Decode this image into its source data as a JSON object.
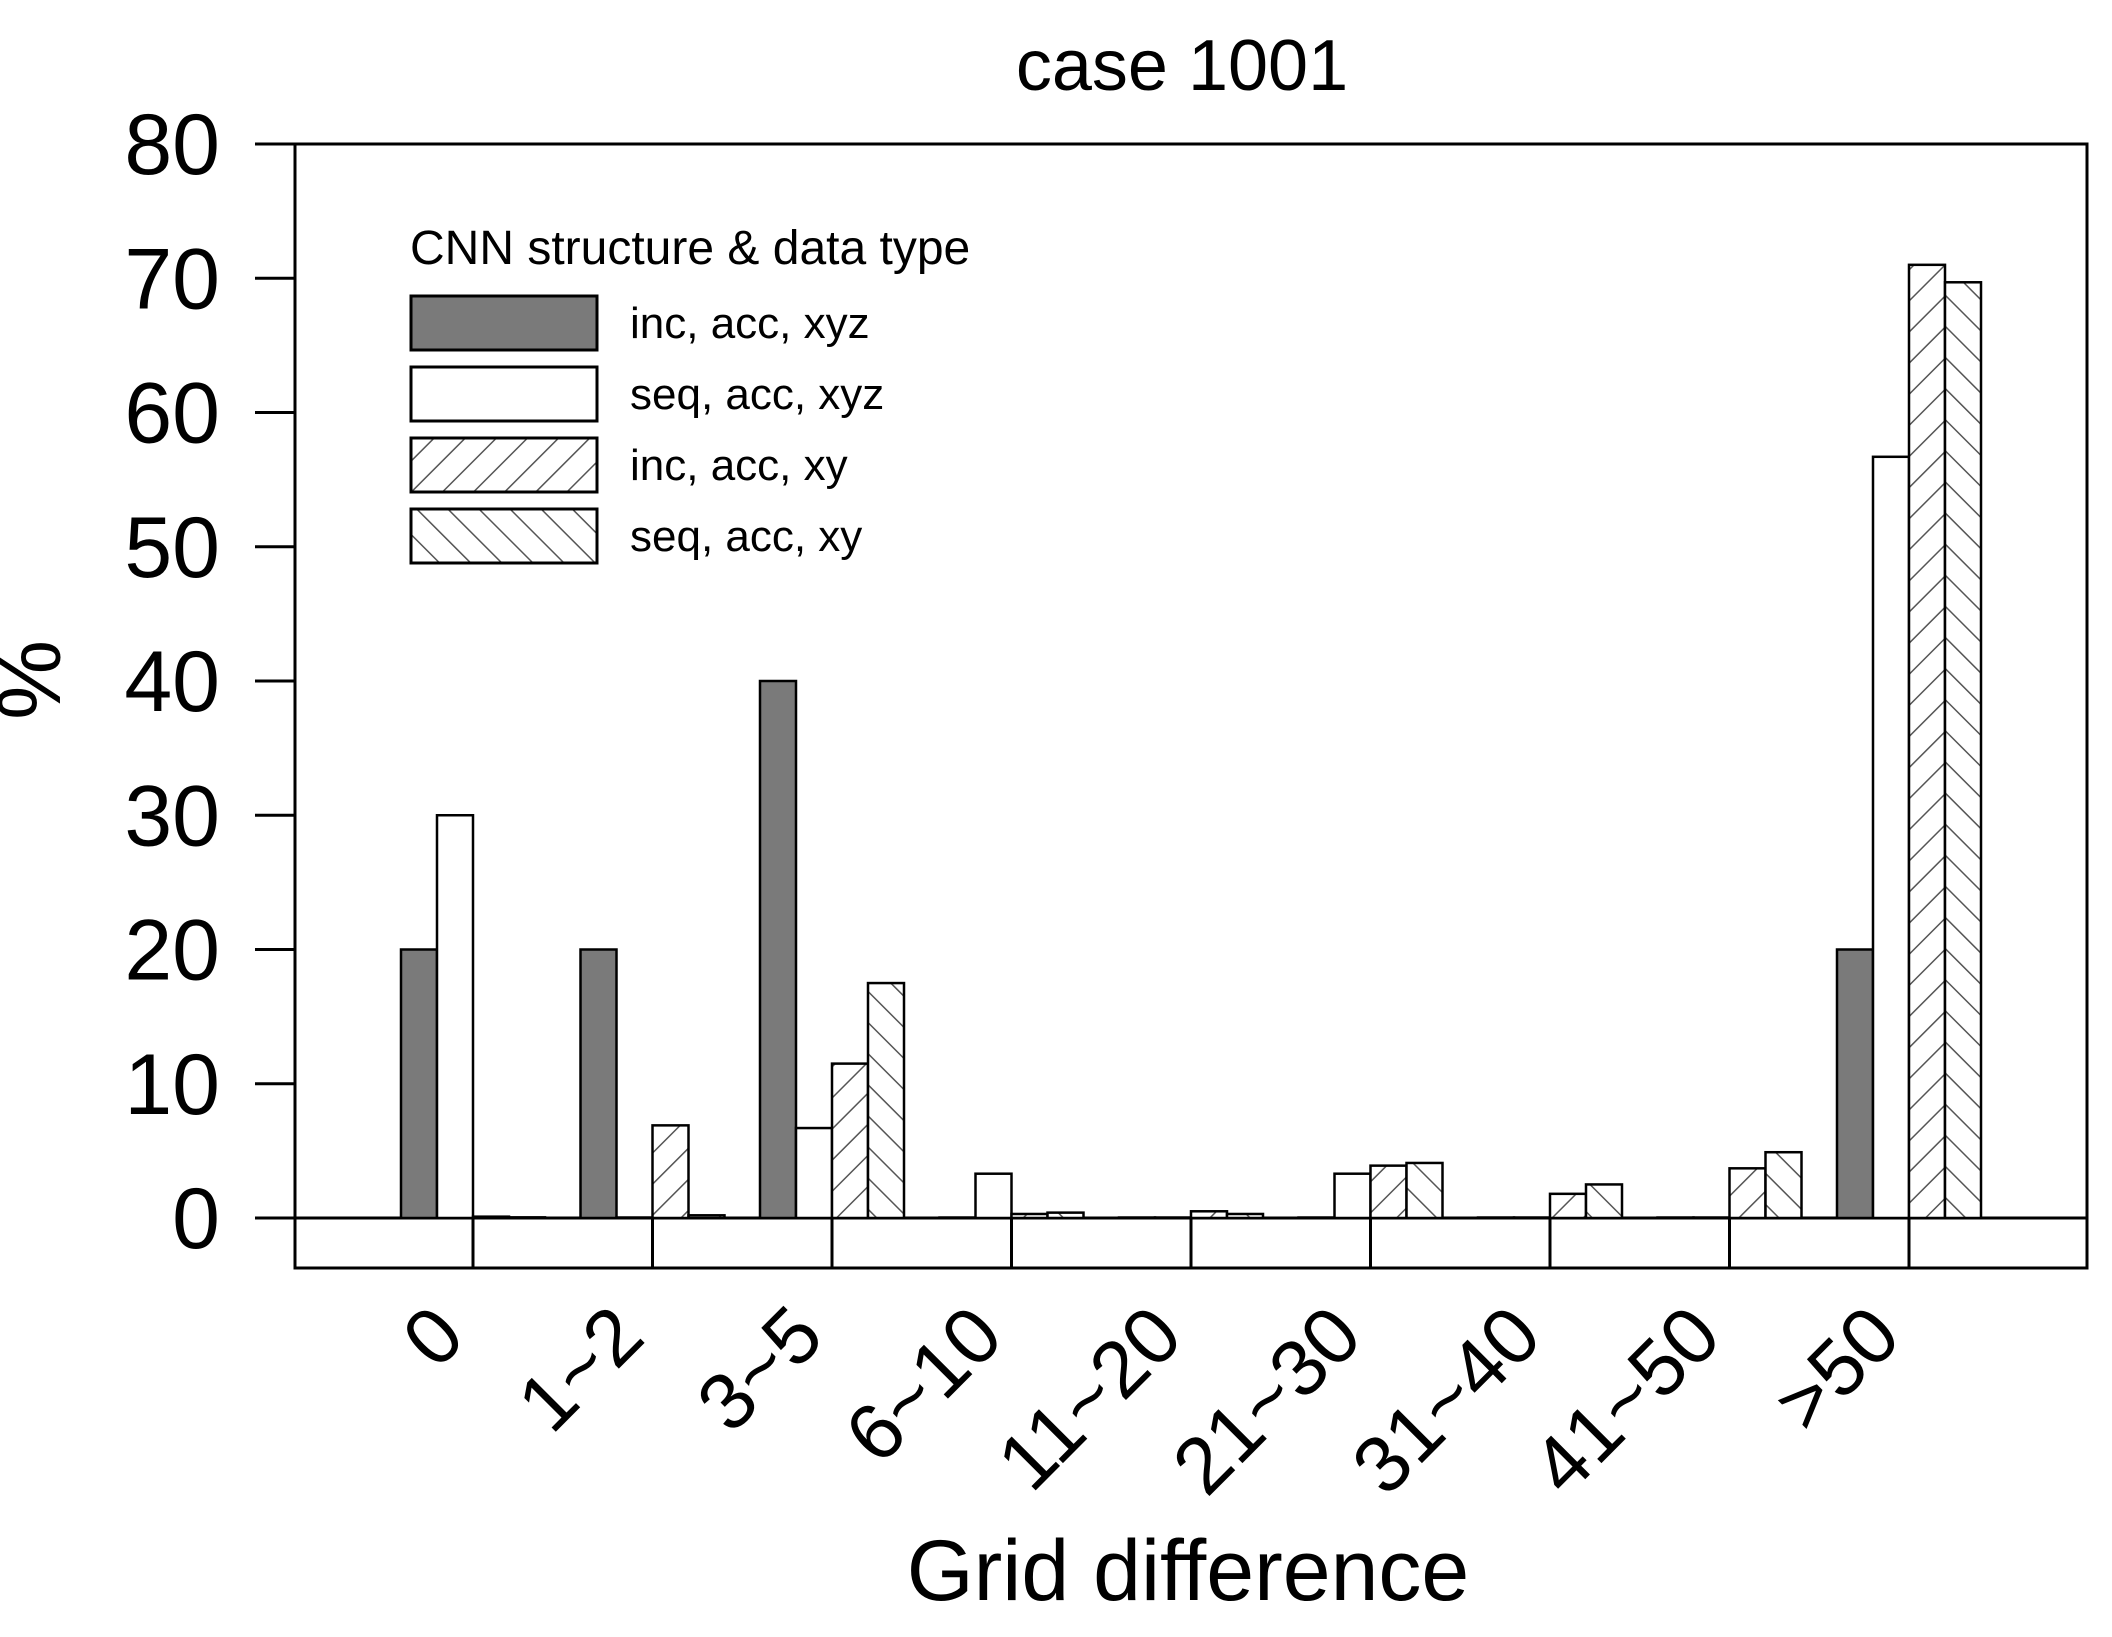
{
  "chart_data": {
    "type": "bar",
    "title": "case 1001",
    "xlabel": "Grid difference",
    "ylabel": "%",
    "ylim": [
      0,
      80
    ],
    "yticks": [
      0,
      10,
      20,
      30,
      40,
      50,
      60,
      70,
      80
    ],
    "categories": [
      "0",
      "1~2",
      "3~5",
      "6~10",
      "11~20",
      "21~30",
      "31~40",
      "41~50",
      ">50"
    ],
    "legend": {
      "title": "CNN structure & data type",
      "position": "top-left"
    },
    "series": [
      {
        "name": "inc, acc, xyz",
        "style": "solid",
        "values": [
          20,
          20,
          40,
          0,
          0,
          0,
          0,
          0,
          20
        ]
      },
      {
        "name": "seq, acc, xyz",
        "style": "blank",
        "values": [
          30,
          0,
          6.7,
          3.3,
          0,
          3.3,
          0,
          0,
          56.7
        ]
      },
      {
        "name": "inc, acc, xy",
        "style": "hatch-forward",
        "values": [
          0.1,
          6.9,
          11.5,
          0.3,
          0.5,
          3.9,
          1.8,
          3.7,
          71.0
        ]
      },
      {
        "name": "seq, acc, xy",
        "style": "hatch-back",
        "values": [
          0.05,
          0.2,
          17.5,
          0.4,
          0.3,
          4.1,
          2.5,
          4.9,
          69.7
        ]
      }
    ],
    "colors": {
      "solid_fill": "#7a7a7a",
      "blank_fill": "#ffffff",
      "edge": "#000000",
      "hatch": "#555555"
    }
  }
}
